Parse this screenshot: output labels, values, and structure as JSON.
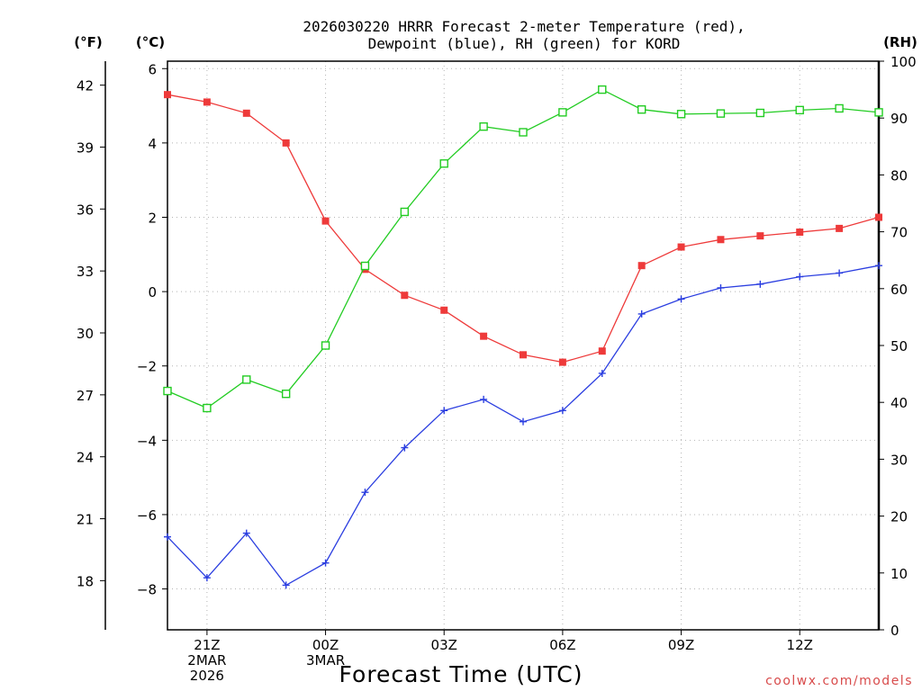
{
  "chart_data": {
    "type": "line",
    "title_line1": "2026030220 HRRR Forecast 2-meter Temperature (red),",
    "title_line2": "Dewpoint (blue), RH (green) for KORD",
    "xlabel": "Forecast Time (UTC)",
    "credit": "coolwx.com/models",
    "units": {
      "fahrenheit": "(°F)",
      "celsius": "(°C)",
      "rh": "(RH)"
    },
    "x_hours": [
      0,
      1,
      2,
      3,
      4,
      5,
      6,
      7,
      8,
      9,
      10,
      11,
      12,
      13,
      14,
      15,
      16,
      17,
      18
    ],
    "x_range": [
      0,
      18
    ],
    "x_ticks": [
      {
        "hour": 1,
        "lines": [
          "21Z",
          "2MAR",
          "2026"
        ]
      },
      {
        "hour": 4,
        "lines": [
          "00Z",
          "3MAR"
        ]
      },
      {
        "hour": 7,
        "lines": [
          "03Z"
        ]
      },
      {
        "hour": 10,
        "lines": [
          "06Z"
        ]
      },
      {
        "hour": 13,
        "lines": [
          "09Z"
        ]
      },
      {
        "hour": 16,
        "lines": [
          "12Z"
        ]
      }
    ],
    "celsius_axis": {
      "range": [
        -9.1,
        6.2
      ],
      "ticks": [
        6,
        4,
        2,
        0,
        -2,
        -4,
        -6,
        -8
      ],
      "labels": [
        "6",
        "4",
        "2",
        "0",
        "−2",
        "−4",
        "−6",
        "−8"
      ]
    },
    "fahrenheit_axis": {
      "ticks": [
        42,
        39,
        36,
        33,
        30,
        27,
        24,
        21,
        18
      ],
      "labels": [
        "42",
        "39",
        "36",
        "33",
        "30",
        "27",
        "24",
        "21",
        "18"
      ]
    },
    "rh_axis": {
      "range": [
        0,
        100
      ],
      "ticks": [
        100,
        90,
        80,
        70,
        60,
        50,
        40,
        30,
        20,
        10,
        0
      ],
      "labels": [
        "100",
        "90",
        "80",
        "70",
        "60",
        "50",
        "40",
        "30",
        "20",
        "10",
        "0"
      ]
    },
    "series": [
      {
        "name": "2-meter Temperature",
        "unit": "C",
        "color": "#ee3a3a",
        "marker": "filled-square",
        "values": [
          5.3,
          5.1,
          4.8,
          4.0,
          1.9,
          0.6,
          -0.1,
          -0.5,
          -1.2,
          -1.7,
          -1.9,
          -1.6,
          0.7,
          1.2,
          1.4,
          1.5,
          1.6,
          1.7,
          2.0
        ]
      },
      {
        "name": "Dewpoint",
        "unit": "C",
        "color": "#2b3ee0",
        "marker": "plus",
        "values": [
          -6.6,
          -7.7,
          -6.5,
          -7.9,
          -7.3,
          -5.4,
          -4.2,
          -3.2,
          -2.9,
          -3.5,
          -3.2,
          -2.2,
          -0.6,
          -0.2,
          0.1,
          0.2,
          0.4,
          0.5,
          0.7
        ]
      },
      {
        "name": "RH",
        "unit": "%",
        "color": "#22cc22",
        "marker": "open-square",
        "values": [
          42,
          39,
          44,
          41.5,
          50,
          64,
          73.5,
          82,
          88.5,
          87.5,
          91,
          95,
          91.5,
          90.7,
          90.8,
          90.9,
          91.4,
          91.7,
          91
        ]
      }
    ]
  }
}
